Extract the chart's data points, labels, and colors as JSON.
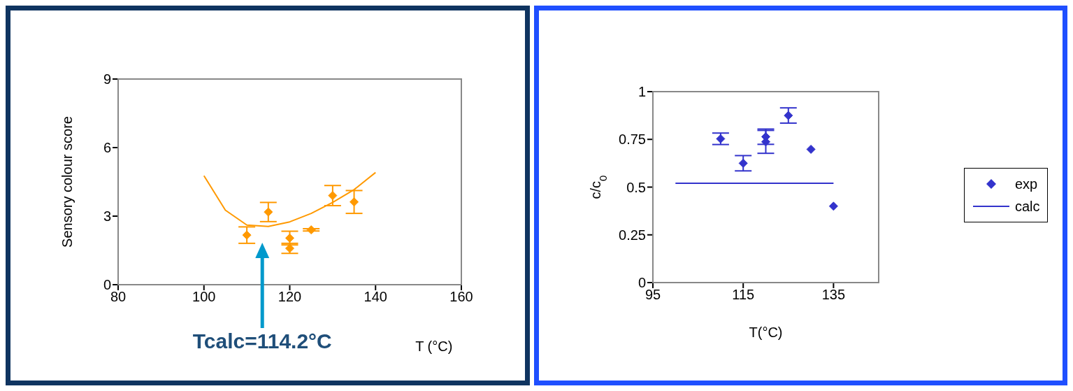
{
  "chart_data": [
    {
      "type": "scatter",
      "ylabel": "Sensory colour score",
      "xlabel": "T (°C)",
      "xlim": [
        80,
        160
      ],
      "xticks": [
        80,
        100,
        120,
        140,
        160
      ],
      "ylim": [
        0,
        9
      ],
      "yticks": [
        0,
        3,
        6,
        9
      ],
      "grid": false,
      "annotations": [
        "Tcalc=114.2°C"
      ],
      "series": [
        {
          "marker": "diamond",
          "color": "#ff9900",
          "x": [
            110,
            115,
            120,
            120,
            125,
            130,
            135
          ],
          "values": [
            2.17,
            3.18,
            2.04,
            1.59,
            2.4,
            3.9,
            3.62
          ],
          "errors": [
            0.36,
            0.42,
            0.3,
            0.22,
            0.05,
            0.44,
            0.5
          ]
        },
        {
          "type": "line",
          "marker": "none",
          "color": "#ff9900",
          "x": [
            100,
            105,
            110,
            115,
            120,
            125,
            130,
            135,
            140
          ],
          "values": [
            4.77,
            3.26,
            2.61,
            2.55,
            2.75,
            3.12,
            3.6,
            4.16,
            4.91
          ]
        }
      ]
    },
    {
      "type": "scatter",
      "ylabel": "c/c$_{0}$",
      "xlabel": "T(°C)",
      "xlim": [
        95,
        145
      ],
      "xticks": [
        95,
        115,
        135
      ],
      "ylim": [
        0,
        1
      ],
      "yticks": [
        0,
        0.25,
        0.5,
        0.75,
        1
      ],
      "grid": false,
      "legend": "right",
      "series": [
        {
          "name": "exp",
          "marker": "diamond",
          "color": "#3333cc",
          "x": [
            110,
            115,
            120,
            120,
            125,
            130,
            135
          ],
          "values": [
            0.753,
            0.625,
            0.764,
            0.737,
            0.875,
            0.698,
            0.4
          ],
          "errors": [
            0.03,
            0.04,
            0.04,
            0.06,
            0.04,
            null,
            null
          ]
        },
        {
          "type": "line",
          "name": "calc",
          "marker": "none",
          "color": "#3333cc",
          "x": [
            100,
            135
          ],
          "values": [
            0.52,
            0.52
          ]
        }
      ]
    }
  ]
}
